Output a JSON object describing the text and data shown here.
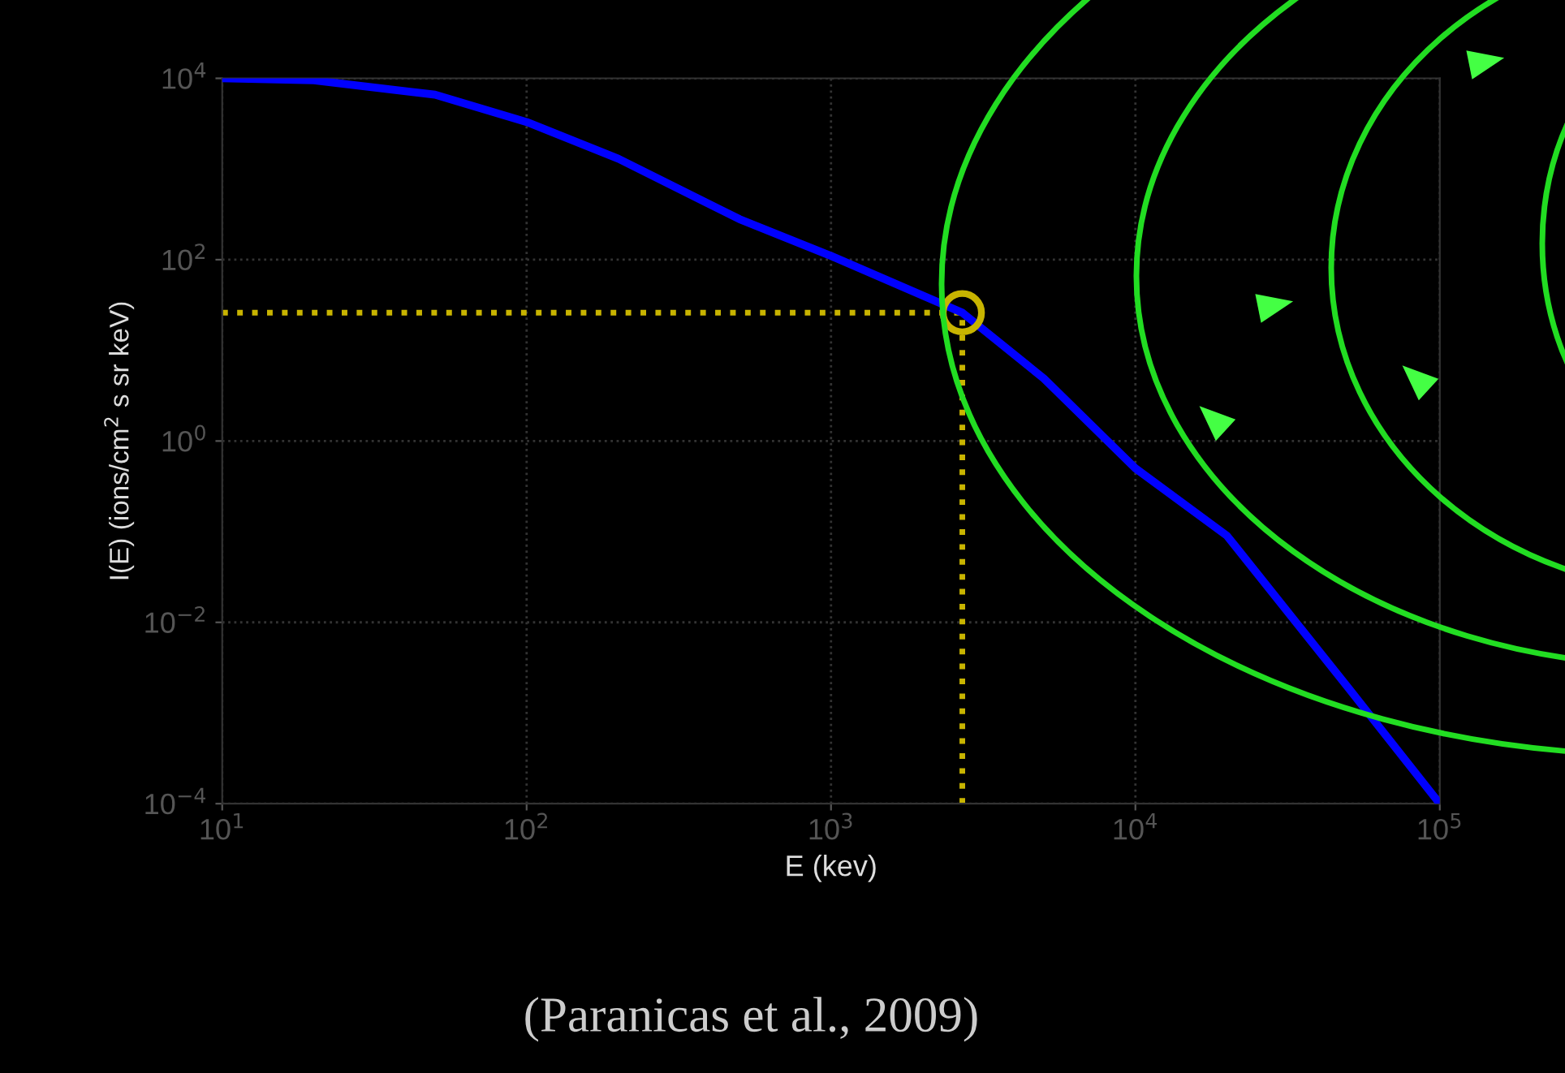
{
  "chart_data": {
    "type": "line",
    "xlabel": "E (kev)",
    "ylabel": "I(E) (ions/cm$^{2}$ s sr keV)",
    "log": "xy",
    "grid": true,
    "xlim": [
      10,
      100000
    ],
    "ylim": [
      0.0001,
      10000
    ],
    "xticks": [
      {
        "value": 10,
        "label": "10$^{1}$"
      },
      {
        "value": 100,
        "label": "10$^{2}$"
      },
      {
        "value": 1000,
        "label": "10$^{3}$"
      },
      {
        "value": 10000,
        "label": "10$^{4}$"
      },
      {
        "value": 100000,
        "label": "10$^{5}$"
      }
    ],
    "yticks": [
      {
        "value": 0.0001,
        "label": "10$^{−4}$"
      },
      {
        "value": 0.01,
        "label": "10$^{−2}$"
      },
      {
        "value": 1,
        "label": "10$^{0}$"
      },
      {
        "value": 100,
        "label": "10$^{2}$"
      },
      {
        "value": 10000,
        "label": "10$^{4}$"
      }
    ],
    "x": [
      10,
      20,
      50,
      100,
      200,
      500,
      1000,
      2700,
      5000,
      10000,
      20000,
      50000,
      100000
    ],
    "series": [
      {
        "color": "#0000ff",
        "values": [
          10000,
          9500,
          6600,
          3300,
          1300,
          280,
          110,
          26,
          4.9,
          0.5,
          0.09,
          0.0019,
          0.0001
        ]
      },
      {
        "type": "scatter",
        "color": "#c8b400",
        "marker": "circle",
        "x": [
          2700
        ],
        "values": [
          26
        ]
      }
    ],
    "ref_lines": [
      {
        "axis": "x",
        "value": 2700,
        "color": "#c8b400",
        "line_style": "dotted"
      },
      {
        "axis": "y",
        "value": 26,
        "color": "#c8b400",
        "line_style": "dotted"
      }
    ],
    "annotations": [
      "(Paranicas et al., 2009)"
    ]
  }
}
